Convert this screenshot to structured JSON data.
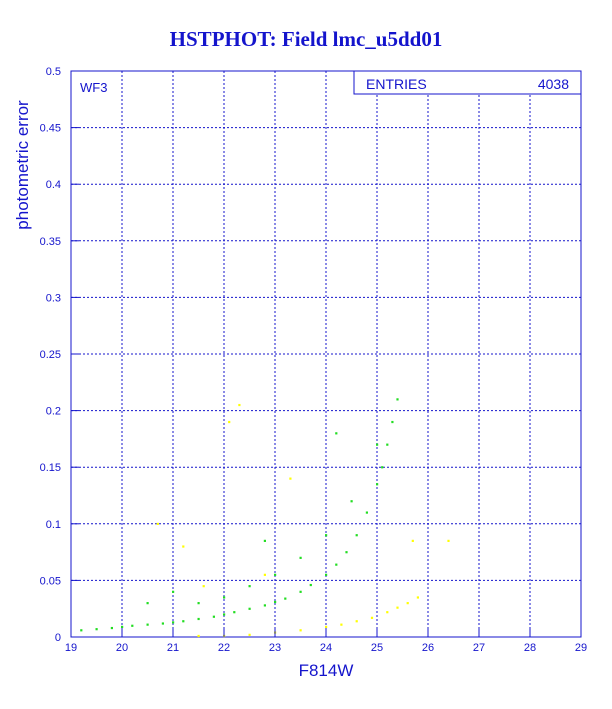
{
  "chart_data": {
    "type": "scatter",
    "title": "HSTPHOT: Field lmc_u5dd01",
    "panel_label": "WF3",
    "xlabel": "F814W",
    "ylabel": "photometric error",
    "xlim": [
      19,
      29
    ],
    "ylim": [
      0,
      0.5
    ],
    "x_ticks": [
      "19",
      "20",
      "21",
      "22",
      "23",
      "24",
      "25",
      "26",
      "27",
      "28",
      "29"
    ],
    "y_ticks": [
      "0",
      "0.05",
      "0.1",
      "0.15",
      "0.2",
      "0.25",
      "0.3",
      "0.35",
      "0.4",
      "0.45",
      "0.5"
    ],
    "grid": true,
    "stats_box": {
      "label": "ENTRIES",
      "value": "4038"
    },
    "series": [
      {
        "color": "#22dd22",
        "points": [
          [
            19.2,
            0.006
          ],
          [
            19.5,
            0.007
          ],
          [
            19.8,
            0.008
          ],
          [
            20.0,
            0.009
          ],
          [
            20.2,
            0.01
          ],
          [
            20.5,
            0.011
          ],
          [
            20.8,
            0.012
          ],
          [
            21.0,
            0.013
          ],
          [
            21.2,
            0.014
          ],
          [
            21.5,
            0.016
          ],
          [
            21.8,
            0.018
          ],
          [
            22.0,
            0.02
          ],
          [
            22.2,
            0.022
          ],
          [
            22.5,
            0.025
          ],
          [
            22.8,
            0.028
          ],
          [
            23.0,
            0.031
          ],
          [
            23.2,
            0.034
          ],
          [
            23.5,
            0.04
          ],
          [
            23.7,
            0.046
          ],
          [
            24.0,
            0.055
          ],
          [
            24.2,
            0.064
          ],
          [
            24.4,
            0.075
          ],
          [
            24.6,
            0.09
          ],
          [
            24.8,
            0.11
          ],
          [
            25.0,
            0.135
          ],
          [
            25.1,
            0.15
          ],
          [
            25.2,
            0.17
          ],
          [
            25.3,
            0.19
          ],
          [
            25.4,
            0.21
          ],
          [
            21.5,
            0.03
          ],
          [
            22.0,
            0.035
          ],
          [
            22.5,
            0.045
          ],
          [
            23.0,
            0.055
          ],
          [
            23.5,
            0.07
          ],
          [
            24.0,
            0.09
          ],
          [
            24.5,
            0.12
          ],
          [
            25.0,
            0.17
          ],
          [
            24.2,
            0.18
          ],
          [
            22.8,
            0.085
          ],
          [
            21.0,
            0.04
          ],
          [
            20.5,
            0.03
          ]
        ]
      },
      {
        "color": "#ffff00",
        "points": [
          [
            21.5,
            0.001
          ],
          [
            22.0,
            0.001
          ],
          [
            22.5,
            0.002
          ],
          [
            23.0,
            0.004
          ],
          [
            23.5,
            0.006
          ],
          [
            24.0,
            0.009
          ],
          [
            24.3,
            0.011
          ],
          [
            24.6,
            0.014
          ],
          [
            24.9,
            0.017
          ],
          [
            25.2,
            0.022
          ],
          [
            25.4,
            0.026
          ],
          [
            25.6,
            0.03
          ],
          [
            25.8,
            0.035
          ],
          [
            22.3,
            0.205
          ],
          [
            23.3,
            0.14
          ],
          [
            21.2,
            0.08
          ],
          [
            22.1,
            0.19
          ],
          [
            20.7,
            0.1
          ],
          [
            21.6,
            0.045
          ],
          [
            26.4,
            0.085
          ],
          [
            25.7,
            0.085
          ],
          [
            22.8,
            0.055
          ]
        ]
      }
    ]
  }
}
